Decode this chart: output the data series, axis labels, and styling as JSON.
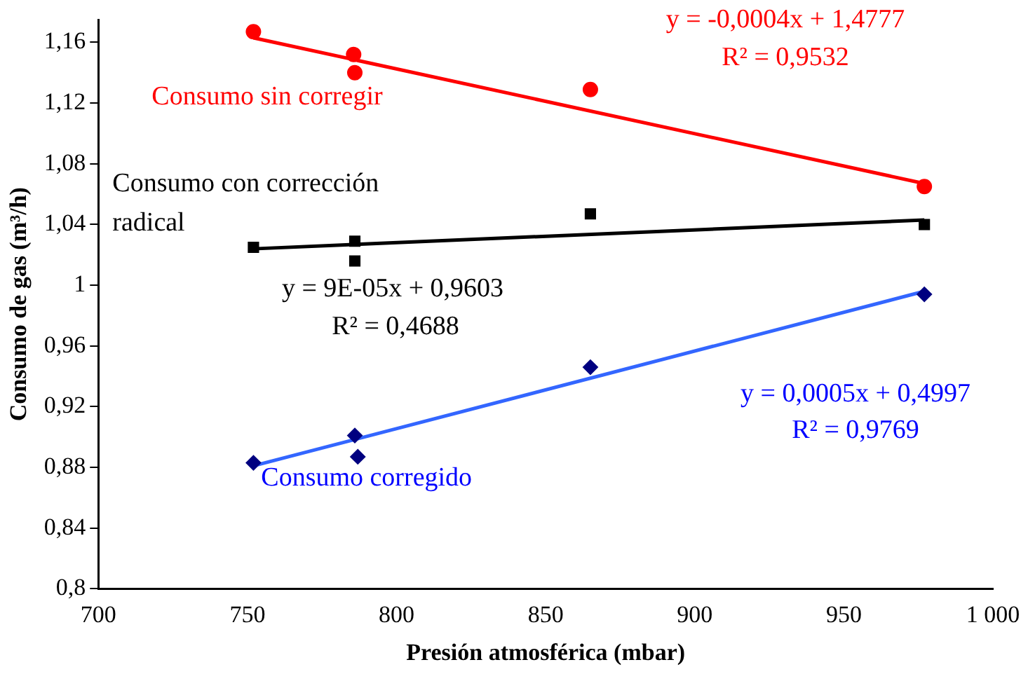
{
  "chart_data": {
    "type": "scatter",
    "xlabel": "Presión atmosférica (mbar)",
    "ylabel": "Consumo de gas (m³/h)",
    "xlim": [
      700,
      1000
    ],
    "xticks": [
      700,
      750,
      800,
      850,
      900,
      950,
      {
        "value": 1000,
        "label": "1 000"
      }
    ],
    "ylim": [
      0.8,
      1.175
    ],
    "yticks": [
      {
        "value": 0.8,
        "label": "0,8"
      },
      {
        "value": 0.84,
        "label": "0,84"
      },
      {
        "value": 0.88,
        "label": "0,88"
      },
      {
        "value": 0.92,
        "label": "0,92"
      },
      {
        "value": 0.96,
        "label": "0,96"
      },
      {
        "value": 1,
        "label": "1"
      },
      {
        "value": 1.04,
        "label": "1,04"
      },
      {
        "value": 1.08,
        "label": "1,08"
      },
      {
        "value": 1.12,
        "label": "1,12"
      },
      {
        "value": 1.16,
        "label": "1,16"
      }
    ],
    "grid": false,
    "legend": false,
    "series": [
      {
        "name": "Consumo sin corregir",
        "marker": "circle",
        "color": "#ff0000",
        "x": [
          752,
          785.6,
          786,
          865,
          977
        ],
        "values": [
          1.167,
          1.152,
          1.14,
          1.129,
          1.065
        ]
      },
      {
        "name": "Consumo con corrección radical",
        "marker": "square",
        "color": "#000000",
        "x": [
          752,
          786,
          786,
          865,
          977
        ],
        "values": [
          1.025,
          1.029,
          1.016,
          1.047,
          1.04
        ]
      },
      {
        "name": "Consumo corregido",
        "marker": "diamond",
        "color": "#000080",
        "x": [
          752,
          786,
          787,
          865,
          977
        ],
        "values": [
          0.883,
          0.901,
          0.887,
          0.946,
          0.994
        ]
      },
      {
        "type": "line",
        "color": "#ff0000",
        "x": [
          752,
          977
        ],
        "values": [
          1.163,
          1.067
        ]
      },
      {
        "type": "line",
        "color": "#000000",
        "x": [
          752,
          977
        ],
        "values": [
          1.024,
          1.043
        ]
      },
      {
        "type": "line",
        "color": "#3366ff",
        "x": [
          752,
          977
        ],
        "values": [
          0.881,
          0.996
        ]
      }
    ],
    "annotations": [
      "y = -0,0004x + 1,4777",
      "R² = 0,9532",
      "y = 9E-05x + 0,9603",
      "R² = 0,4688",
      "y = 0,0005x + 0,4997",
      "R² = 0,9769"
    ]
  }
}
